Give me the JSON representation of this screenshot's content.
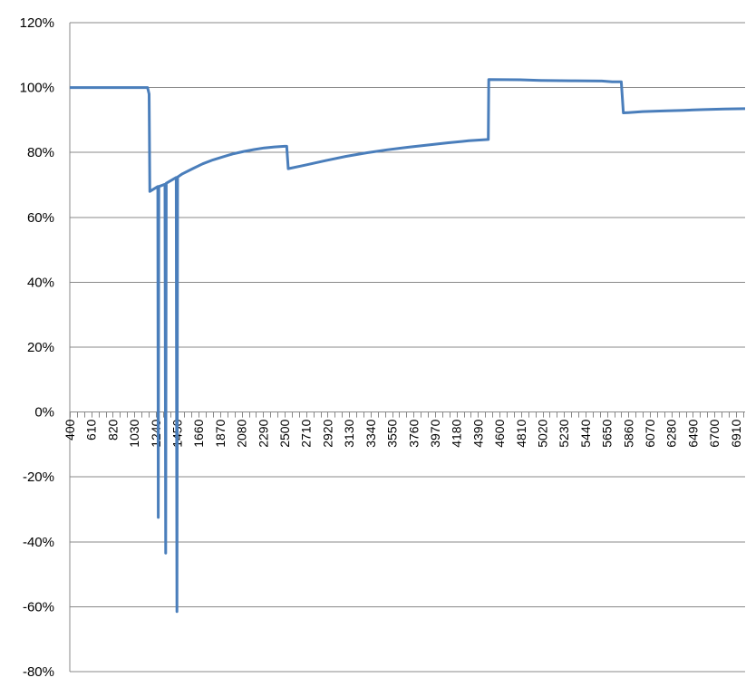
{
  "chart_data": {
    "type": "line",
    "title": "",
    "xlabel": "",
    "ylabel": "",
    "y_unit": "%",
    "ylim": [
      -80,
      120
    ],
    "y_ticks": [
      120,
      100,
      80,
      60,
      40,
      20,
      0,
      -20,
      -40,
      -60,
      -80
    ],
    "y_tick_labels": [
      "120%",
      "100%",
      "80%",
      "60%",
      "40%",
      "20%",
      "0%",
      "-20%",
      "-40%",
      "-60%",
      "-80%"
    ],
    "x_tick_labels": [
      "400",
      "610",
      "820",
      "1030",
      "1240",
      "1450",
      "1660",
      "1870",
      "2080",
      "2290",
      "2500",
      "2710",
      "2920",
      "3130",
      "3340",
      "3550",
      "3760",
      "3970",
      "4180",
      "4390",
      "4600",
      "4810",
      "5020",
      "5230",
      "5440",
      "5650",
      "5860",
      "6070",
      "6280",
      "6490",
      "6700",
      "6910"
    ],
    "x_minor_step": 70,
    "xlim": [
      400,
      7000
    ],
    "grid": "horizontal major",
    "legend": "none",
    "line_color": "#4a7ebb",
    "series": [
      {
        "points": [
          [
            400,
            100
          ],
          [
            1000,
            100
          ],
          [
            1160,
            100
          ],
          [
            1175,
            98
          ],
          [
            1182,
            68
          ],
          [
            1260,
            69.5
          ],
          [
            1265,
            -32.5
          ],
          [
            1270,
            69.5
          ],
          [
            1330,
            70.2
          ],
          [
            1337,
            -43.5
          ],
          [
            1343,
            70.5
          ],
          [
            1440,
            72.3
          ],
          [
            1447,
            -61.5
          ],
          [
            1453,
            72.4
          ],
          [
            1500,
            73.4
          ],
          [
            1600,
            75.0
          ],
          [
            1700,
            76.5
          ],
          [
            1800,
            77.7
          ],
          [
            1900,
            78.7
          ],
          [
            2000,
            79.6
          ],
          [
            2100,
            80.3
          ],
          [
            2200,
            80.9
          ],
          [
            2300,
            81.4
          ],
          [
            2400,
            81.7
          ],
          [
            2500,
            81.9
          ],
          [
            2520,
            81.9
          ],
          [
            2535,
            75.0
          ],
          [
            2700,
            76.1
          ],
          [
            2900,
            77.5
          ],
          [
            3100,
            78.8
          ],
          [
            3300,
            79.9
          ],
          [
            3500,
            80.8
          ],
          [
            3700,
            81.6
          ],
          [
            3900,
            82.3
          ],
          [
            4100,
            83.0
          ],
          [
            4300,
            83.6
          ],
          [
            4490,
            84.0
          ],
          [
            4495,
            102.5
          ],
          [
            4800,
            102.4
          ],
          [
            5000,
            102.2
          ],
          [
            5300,
            102.1
          ],
          [
            5600,
            102.0
          ],
          [
            5700,
            101.8
          ],
          [
            5790,
            101.8
          ],
          [
            5810,
            92.2
          ],
          [
            5860,
            92.3
          ],
          [
            6000,
            92.6
          ],
          [
            6200,
            92.8
          ],
          [
            6400,
            93.0
          ],
          [
            6600,
            93.2
          ],
          [
            6800,
            93.4
          ],
          [
            7000,
            93.5
          ]
        ]
      }
    ]
  }
}
